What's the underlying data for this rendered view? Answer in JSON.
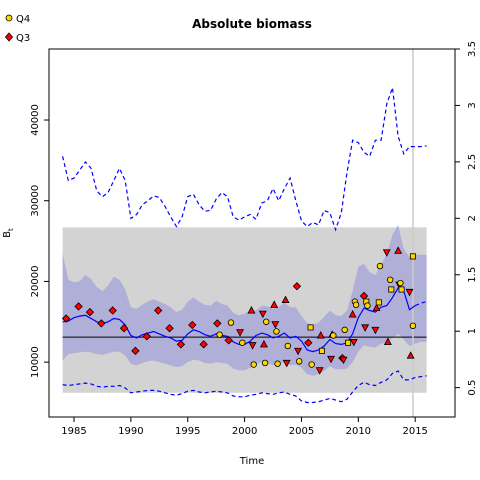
{
  "chart_data": {
    "type": "line",
    "title": "Absolute biomass",
    "xlabel": "Time",
    "ylabel": "B",
    "ylabel_sub": "t",
    "xlim": [
      1982.8,
      2018.5
    ],
    "ylim": [
      3200,
      48800
    ],
    "y2lim": [
      0.24,
      3.5
    ],
    "x_ticks": [
      1985,
      1990,
      1995,
      2000,
      2005,
      2010,
      2015
    ],
    "y_ticks": [
      10000,
      20000,
      30000,
      40000
    ],
    "y2_ticks": [
      "0.5",
      "1",
      "1.5",
      "2",
      "2.5",
      "3",
      "3.5"
    ],
    "y2_tick_values": [
      0.5,
      1,
      1.5,
      2,
      2.5,
      3,
      3.5
    ],
    "colors": {
      "estimate": "#0000ff",
      "ci_band": "#a3a3d9",
      "ref_band": "#d3d3d3",
      "q4": "#ffd700",
      "q3": "#ff0000",
      "ref_line": "#000000",
      "vline": "#cccccc"
    },
    "legend": {
      "placement": "top-left",
      "entries": [
        {
          "label": "Q4",
          "marker": "circle",
          "color": "#ffd700"
        },
        {
          "label": "Q3",
          "marker": "diamond",
          "color": "#ff0000"
        }
      ]
    },
    "ref_band": {
      "y_low": 6200,
      "y_high": 26700,
      "x_start": 1984,
      "x_end": 2016
    },
    "ref_line": {
      "y": 13100
    },
    "vline": {
      "x": 2014.8
    },
    "series": [
      {
        "name": "estimate",
        "style": "solid",
        "x": [
          1984,
          1984.5,
          1985,
          1985.5,
          1986,
          1986.5,
          1987,
          1987.5,
          1988,
          1988.5,
          1989,
          1989.5,
          1990,
          1990.5,
          1991,
          1991.5,
          1992,
          1992.5,
          1993,
          1993.5,
          1994,
          1994.5,
          1995,
          1995.5,
          1996,
          1996.5,
          1997,
          1997.5,
          1998,
          1998.5,
          1999,
          1999.5,
          2000,
          2000.5,
          2001,
          2001.5,
          2002,
          2002.5,
          2003,
          2003.5,
          2004,
          2004.5,
          2005,
          2005.5,
          2006,
          2006.5,
          2007,
          2007.5,
          2008,
          2008.5,
          2009,
          2009.5,
          2010,
          2010.5,
          2011,
          2011.5,
          2012,
          2012.5,
          2013,
          2013.5,
          2014,
          2014.5,
          2015
        ],
        "values": [
          15000,
          15100,
          15500,
          15700,
          15800,
          15400,
          15000,
          14800,
          15000,
          15400,
          15300,
          14600,
          13300,
          13000,
          13400,
          13600,
          13800,
          13500,
          13200,
          13000,
          12600,
          12700,
          13500,
          14000,
          13800,
          13400,
          13200,
          13500,
          13300,
          13200,
          12500,
          12200,
          12200,
          12600,
          13300,
          13600,
          13400,
          13000,
          13200,
          13600,
          13000,
          13200,
          12600,
          11500,
          11300,
          11500,
          12000,
          12800,
          12300,
          12200,
          12400,
          13500,
          15500,
          16700,
          16400,
          16200,
          16800,
          17000,
          18000,
          19200,
          18800,
          16500,
          17000
        ]
      },
      {
        "name": "forecast",
        "style": "dashed",
        "x": [
          2015,
          2015.5,
          2016
        ],
        "values": [
          17000,
          17300,
          17500
        ]
      },
      {
        "name": "upper",
        "style": "dashed",
        "x": [
          1984,
          1984.5,
          1985,
          1985.5,
          1986,
          1986.5,
          1987,
          1987.5,
          1988,
          1988.5,
          1989,
          1989.5,
          1990,
          1990.5,
          1991,
          1991.5,
          1992,
          1992.5,
          1993,
          1993.5,
          1994,
          1994.5,
          1995,
          1995.5,
          1996,
          1996.5,
          1997,
          1997.5,
          1998,
          1998.5,
          1999,
          1999.5,
          2000,
          2000.5,
          2001,
          2001.5,
          2002,
          2002.5,
          2003,
          2003.5,
          2004,
          2004.5,
          2005,
          2005.5,
          2006,
          2006.5,
          2007,
          2007.5,
          2008,
          2008.5,
          2009,
          2009.5,
          2010,
          2010.5,
          2011,
          2011.5,
          2012,
          2012.5,
          2013,
          2013.5,
          2014,
          2014.5,
          2015,
          2015.5,
          2016
        ],
        "values": [
          35500,
          32500,
          32800,
          33800,
          34800,
          34000,
          31200,
          30500,
          31000,
          32500,
          34000,
          32500,
          27800,
          28300,
          29500,
          30000,
          30600,
          30400,
          29300,
          28000,
          26800,
          28000,
          30500,
          30800,
          29500,
          28700,
          28800,
          30200,
          31000,
          30500,
          28000,
          27600,
          28000,
          28300,
          27700,
          29700,
          30000,
          31500,
          30000,
          31500,
          32800,
          30000,
          27500,
          26800,
          27300,
          27000,
          28800,
          28500,
          26400,
          28500,
          33500,
          37500,
          37200,
          36000,
          35500,
          37500,
          37500,
          42000,
          44000,
          38000,
          35800,
          36700,
          36700,
          36700,
          36800
        ]
      },
      {
        "name": "lower",
        "style": "dashed",
        "x": [
          1984,
          1984.5,
          1985,
          1985.5,
          1986,
          1986.5,
          1987,
          1987.5,
          1988,
          1988.5,
          1989,
          1989.5,
          1990,
          1990.5,
          1991,
          1991.5,
          1992,
          1992.5,
          1993,
          1993.5,
          1994,
          1994.5,
          1995,
          1995.5,
          1996,
          1996.5,
          1997,
          1997.5,
          1998,
          1998.5,
          1999,
          1999.5,
          2000,
          2000.5,
          2001,
          2001.5,
          2002,
          2002.5,
          2003,
          2003.5,
          2004,
          2004.5,
          2005,
          2005.5,
          2006,
          2006.5,
          2007,
          2007.5,
          2008,
          2008.5,
          2009,
          2009.5,
          2010,
          2010.5,
          2011,
          2011.5,
          2012,
          2012.5,
          2013,
          2013.5,
          2014,
          2014.5,
          2015,
          2015.5,
          2016
        ],
        "values": [
          7200,
          7100,
          7200,
          7300,
          7400,
          7300,
          7000,
          6900,
          7000,
          7000,
          7100,
          6800,
          6200,
          6300,
          6400,
          6500,
          6500,
          6400,
          6200,
          6000,
          5900,
          6100,
          6400,
          6500,
          6300,
          6200,
          6300,
          6400,
          6300,
          6200,
          5800,
          5700,
          5700,
          5900,
          6000,
          6200,
          6100,
          6000,
          6200,
          6300,
          6000,
          5800,
          5200,
          5000,
          5000,
          5100,
          5300,
          5500,
          5300,
          5100,
          5400,
          6300,
          7100,
          7500,
          7200,
          7100,
          7500,
          7800,
          8600,
          8900,
          7800,
          7800,
          8100,
          8200,
          8300
        ]
      }
    ],
    "ci_band": {
      "x": [
        1984,
        1984.5,
        1985,
        1985.5,
        1986,
        1986.5,
        1987,
        1987.5,
        1988,
        1988.5,
        1989,
        1989.5,
        1990,
        1990.5,
        1991,
        1991.5,
        1992,
        1992.5,
        1993,
        1993.5,
        1994,
        1994.5,
        1995,
        1995.5,
        1996,
        1996.5,
        1997,
        1997.5,
        1998,
        1998.5,
        1999,
        1999.5,
        2000,
        2000.5,
        2001,
        2001.5,
        2002,
        2002.5,
        2003,
        2003.5,
        2004,
        2004.5,
        2005,
        2005.5,
        2006,
        2006.5,
        2007,
        2007.5,
        2008,
        2008.5,
        2009,
        2009.5,
        2010,
        2010.5,
        2011,
        2011.5,
        2012,
        2012.5,
        2013,
        2013.5,
        2014,
        2014.5,
        2015,
        2015.5,
        2016
      ],
      "upper": [
        23500,
        20200,
        19900,
        20000,
        20800,
        20300,
        19300,
        18800,
        19500,
        20600,
        20200,
        19000,
        16800,
        16600,
        17100,
        17500,
        17800,
        17500,
        17200,
        16800,
        16200,
        16500,
        17500,
        18000,
        17500,
        17100,
        17000,
        17600,
        17200,
        17000,
        16100,
        15800,
        16000,
        16400,
        16400,
        17000,
        16900,
        16600,
        16800,
        17400,
        16800,
        16800,
        15700,
        14800,
        14600,
        14900,
        15600,
        16400,
        15800,
        15700,
        16400,
        18800,
        21800,
        22200,
        21100,
        20800,
        22100,
        23400,
        25800,
        27000,
        24000,
        23000,
        23300,
        23300,
        23300
      ],
      "lower": [
        10200,
        11000,
        11100,
        11200,
        11300,
        11200,
        11000,
        10900,
        11100,
        11300,
        11300,
        10800,
        9800,
        9600,
        9900,
        10100,
        10200,
        10000,
        9800,
        9600,
        9400,
        9500,
        10000,
        10300,
        10200,
        9900,
        9800,
        10000,
        9900,
        9800,
        9200,
        9000,
        9000,
        9300,
        9800,
        10000,
        9900,
        9600,
        9800,
        10000,
        9600,
        9700,
        9300,
        8500,
        8300,
        8500,
        8900,
        9500,
        9100,
        9100,
        9200,
        10000,
        11300,
        12100,
        11900,
        11800,
        12300,
        12400,
        13000,
        13500,
        12800,
        12000,
        12300,
        12500,
        12500
      ]
    },
    "points": [
      {
        "series": "Q3",
        "marker": "diamond",
        "x": 1984.3,
        "y": 15400
      },
      {
        "series": "Q3",
        "marker": "diamond",
        "x": 1985.4,
        "y": 16900
      },
      {
        "series": "Q3",
        "marker": "diamond",
        "x": 1986.4,
        "y": 16200
      },
      {
        "series": "Q3",
        "marker": "diamond",
        "x": 1987.4,
        "y": 14800
      },
      {
        "series": "Q3",
        "marker": "diamond",
        "x": 1988.4,
        "y": 16400
      },
      {
        "series": "Q3",
        "marker": "diamond",
        "x": 1989.4,
        "y": 14200
      },
      {
        "series": "Q3",
        "marker": "diamond",
        "x": 1990.4,
        "y": 11400
      },
      {
        "series": "Q3",
        "marker": "diamond",
        "x": 1991.4,
        "y": 13200
      },
      {
        "series": "Q3",
        "marker": "diamond",
        "x": 1992.4,
        "y": 16400
      },
      {
        "series": "Q3",
        "marker": "diamond",
        "x": 1993.4,
        "y": 14200
      },
      {
        "series": "Q3",
        "marker": "diamond",
        "x": 1994.4,
        "y": 12200
      },
      {
        "series": "Q3",
        "marker": "diamond",
        "x": 1995.4,
        "y": 14600
      },
      {
        "series": "Q3",
        "marker": "diamond",
        "x": 1996.4,
        "y": 12200
      },
      {
        "series": "Q3",
        "marker": "diamond",
        "x": 1997.6,
        "y": 14800
      },
      {
        "series": "Q3",
        "marker": "diamond",
        "x": 1998.6,
        "y": 12700
      },
      {
        "series": "Q4",
        "marker": "circle",
        "x": 1997.8,
        "y": 13400
      },
      {
        "series": "Q4",
        "marker": "circle",
        "x": 1998.8,
        "y": 14900
      },
      {
        "series": "Q3",
        "marker": "triangle-down",
        "x": 1999.6,
        "y": 13700
      },
      {
        "series": "Q4",
        "marker": "circle",
        "x": 1999.8,
        "y": 12400
      },
      {
        "series": "Q3",
        "marker": "triangle-up",
        "x": 2000.6,
        "y": 16400
      },
      {
        "series": "Q3",
        "marker": "triangle-down",
        "x": 2000.7,
        "y": 12100
      },
      {
        "series": "Q4",
        "marker": "circle",
        "x": 2000.8,
        "y": 9700
      },
      {
        "series": "Q3",
        "marker": "triangle-down",
        "x": 2001.6,
        "y": 16000
      },
      {
        "series": "Q3",
        "marker": "triangle-up",
        "x": 2001.7,
        "y": 12200
      },
      {
        "series": "Q4",
        "marker": "circle",
        "x": 2001.8,
        "y": 9900
      },
      {
        "series": "Q4",
        "marker": "circle",
        "x": 2001.9,
        "y": 15000
      },
      {
        "series": "Q3",
        "marker": "triangle-up",
        "x": 2002.6,
        "y": 17100
      },
      {
        "series": "Q3",
        "marker": "triangle-down",
        "x": 2002.7,
        "y": 14700
      },
      {
        "series": "Q4",
        "marker": "circle",
        "x": 2002.8,
        "y": 13800
      },
      {
        "series": "Q4",
        "marker": "circle",
        "x": 2002.9,
        "y": 9800
      },
      {
        "series": "Q3",
        "marker": "triangle-up",
        "x": 2003.6,
        "y": 17700
      },
      {
        "series": "Q3",
        "marker": "triangle-down",
        "x": 2003.7,
        "y": 9900
      },
      {
        "series": "Q4",
        "marker": "circle",
        "x": 2003.8,
        "y": 12000
      },
      {
        "series": "Q3",
        "marker": "diamond",
        "x": 2004.6,
        "y": 19400
      },
      {
        "series": "Q3",
        "marker": "triangle-down",
        "x": 2004.7,
        "y": 11400
      },
      {
        "series": "Q4",
        "marker": "circle",
        "x": 2004.8,
        "y": 10100
      },
      {
        "series": "Q3",
        "marker": "diamond",
        "x": 2005.6,
        "y": 12400
      },
      {
        "series": "Q4",
        "marker": "square",
        "x": 2005.8,
        "y": 14300
      },
      {
        "series": "Q4",
        "marker": "circle",
        "x": 2005.9,
        "y": 9700
      },
      {
        "series": "Q3",
        "marker": "triangle-down",
        "x": 2006.6,
        "y": 9000
      },
      {
        "series": "Q3",
        "marker": "triangle-up",
        "x": 2006.7,
        "y": 13300
      },
      {
        "series": "Q4",
        "marker": "square",
        "x": 2006.8,
        "y": 11400
      },
      {
        "series": "Q3",
        "marker": "triangle-down",
        "x": 2007.6,
        "y": 10400
      },
      {
        "series": "Q3",
        "marker": "triangle-up",
        "x": 2007.7,
        "y": 13400
      },
      {
        "series": "Q4",
        "marker": "circle",
        "x": 2007.8,
        "y": 13300
      },
      {
        "series": "Q3",
        "marker": "diamond",
        "x": 2008.6,
        "y": 10500
      },
      {
        "series": "Q3",
        "marker": "triangle-down",
        "x": 2008.7,
        "y": 10300
      },
      {
        "series": "Q4",
        "marker": "circle",
        "x": 2008.8,
        "y": 14000
      },
      {
        "series": "Q4",
        "marker": "square",
        "x": 2009.1,
        "y": 12400
      },
      {
        "series": "Q3",
        "marker": "triangle-up",
        "x": 2009.5,
        "y": 15900
      },
      {
        "series": "Q3",
        "marker": "triangle-down",
        "x": 2009.6,
        "y": 12500
      },
      {
        "series": "Q4",
        "marker": "circle",
        "x": 2009.7,
        "y": 17500
      },
      {
        "series": "Q4",
        "marker": "circle",
        "x": 2009.8,
        "y": 17100
      },
      {
        "series": "Q3",
        "marker": "triangle-down",
        "x": 2010.6,
        "y": 14300
      },
      {
        "series": "Q3",
        "marker": "diamond",
        "x": 2010.5,
        "y": 18200
      },
      {
        "series": "Q4",
        "marker": "square",
        "x": 2010.7,
        "y": 17500
      },
      {
        "series": "Q4",
        "marker": "circle",
        "x": 2010.8,
        "y": 17000
      },
      {
        "series": "Q3",
        "marker": "triangle-up",
        "x": 2011.6,
        "y": 16700
      },
      {
        "series": "Q3",
        "marker": "triangle-down",
        "x": 2011.5,
        "y": 14000
      },
      {
        "series": "Q4",
        "marker": "square",
        "x": 2011.8,
        "y": 17400
      },
      {
        "series": "Q4",
        "marker": "circle",
        "x": 2011.9,
        "y": 21900
      },
      {
        "series": "Q3",
        "marker": "triangle-down",
        "x": 2012.5,
        "y": 23600
      },
      {
        "series": "Q3",
        "marker": "triangle-up",
        "x": 2012.6,
        "y": 12500
      },
      {
        "series": "Q4",
        "marker": "circle",
        "x": 2012.8,
        "y": 20200
      },
      {
        "series": "Q4",
        "marker": "square",
        "x": 2012.9,
        "y": 19000
      },
      {
        "series": "Q3",
        "marker": "triangle-up",
        "x": 2013.5,
        "y": 23800
      },
      {
        "series": "Q3",
        "marker": "triangle-down",
        "x": 2013.6,
        "y": 19600
      },
      {
        "series": "Q4",
        "marker": "circle",
        "x": 2013.7,
        "y": 19800
      },
      {
        "series": "Q4",
        "marker": "square",
        "x": 2013.8,
        "y": 19000
      },
      {
        "series": "Q3",
        "marker": "triangle-down",
        "x": 2014.5,
        "y": 18700
      },
      {
        "series": "Q3",
        "marker": "triangle-up",
        "x": 2014.6,
        "y": 10800
      },
      {
        "series": "Q4",
        "marker": "square",
        "x": 2014.8,
        "y": 23100
      },
      {
        "series": "Q4",
        "marker": "circle",
        "x": 2014.8,
        "y": 14500
      }
    ]
  }
}
